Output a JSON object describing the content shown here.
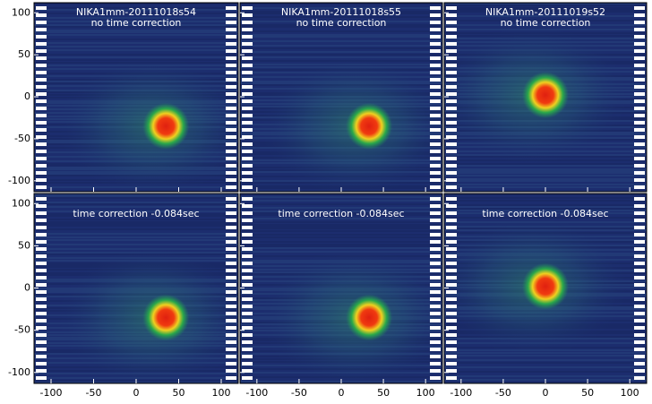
{
  "chart_data": [
    {
      "type": "heatmap",
      "title": "NIKA1mm-20111018s54",
      "subtitle": "no time correction",
      "peak_x": 35,
      "peak_y": -35,
      "xlim": [
        -120,
        120
      ],
      "ylim": [
        -113,
        112
      ],
      "xticks": [
        -100,
        -50,
        0,
        50,
        100
      ],
      "yticks": [
        -100,
        -50,
        0,
        50,
        100
      ]
    },
    {
      "type": "heatmap",
      "title": "NIKA1mm-20111018s55",
      "subtitle": "no time correction",
      "peak_x": 33,
      "peak_y": -35,
      "xlim": [
        -120,
        120
      ],
      "ylim": [
        -113,
        112
      ],
      "xticks": [
        -100,
        -50,
        0,
        50,
        100
      ],
      "yticks": [
        -100,
        -50,
        0,
        50,
        100
      ]
    },
    {
      "type": "heatmap",
      "title": "NIKA1mm-20111019s52",
      "subtitle": "no time correction",
      "peak_x": 0,
      "peak_y": 2,
      "xlim": [
        -120,
        120
      ],
      "ylim": [
        -113,
        112
      ],
      "xticks": [
        -100,
        -50,
        0,
        50,
        100
      ],
      "yticks": [
        -100,
        -50,
        0,
        50,
        100
      ]
    },
    {
      "type": "heatmap",
      "title": "time correction -0.084sec",
      "peak_x": 35,
      "peak_y": -35,
      "xlim": [
        -120,
        120
      ],
      "ylim": [
        -113,
        112
      ],
      "xticks": [
        -100,
        -50,
        0,
        50,
        100
      ],
      "yticks": [
        -100,
        -50,
        0,
        50,
        100
      ]
    },
    {
      "type": "heatmap",
      "title": "time correction -0.084sec",
      "peak_x": 33,
      "peak_y": -35,
      "xlim": [
        -120,
        120
      ],
      "ylim": [
        -113,
        112
      ],
      "xticks": [
        -100,
        -50,
        0,
        50,
        100
      ],
      "yticks": [
        -100,
        -50,
        0,
        50,
        100
      ]
    },
    {
      "type": "heatmap",
      "title": "time correction -0.084sec",
      "peak_x": 0,
      "peak_y": 2,
      "xlim": [
        -120,
        120
      ],
      "ylim": [
        -113,
        112
      ],
      "xticks": [
        -100,
        -50,
        0,
        50,
        100
      ],
      "yticks": [
        -100,
        -50,
        0,
        50,
        100
      ]
    }
  ]
}
